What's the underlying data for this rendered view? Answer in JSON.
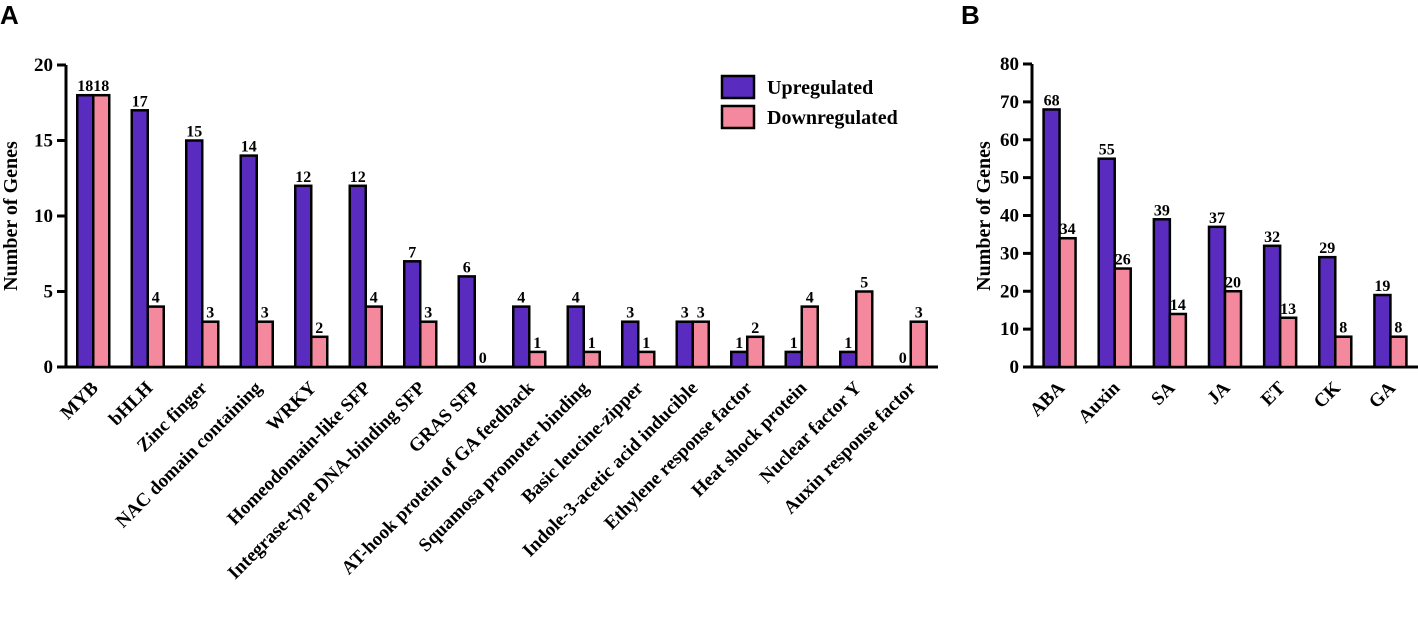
{
  "colors": {
    "upregulated": "#5a2bbf",
    "downregulated": "#f4889c",
    "edge": "#000000"
  },
  "chart_data": [
    {
      "panel": "A",
      "type": "bar",
      "ylabel": "Number of Genes",
      "ylim": [
        0,
        20
      ],
      "yticks": [
        0,
        5,
        10,
        15,
        20
      ],
      "legend": "top-right",
      "categories": [
        "MYB",
        "bHLH",
        "Zinc finger",
        "NAC domain containing",
        "WRKY",
        "Homeodomain-like SFP",
        "Integrase-type DNA-binding SFP",
        "GRAS SFP",
        "AT-hook protein of GA feedback",
        "Squamosa promoter binding",
        "Basic leucine-zipper",
        "Indole-3-acetic acid inducible",
        "Ethylene response factor",
        "Heat shock protein",
        "Nuclear factor Y",
        "Auxin response factor"
      ],
      "series": [
        {
          "name": "Upregulated",
          "values": [
            18,
            17,
            15,
            14,
            12,
            12,
            7,
            6,
            4,
            4,
            3,
            3,
            1,
            1,
            1,
            0
          ]
        },
        {
          "name": "Downregulated",
          "values": [
            18,
            4,
            3,
            3,
            2,
            4,
            3,
            0,
            1,
            1,
            1,
            3,
            2,
            4,
            5,
            3
          ]
        }
      ]
    },
    {
      "panel": "B",
      "type": "bar",
      "ylabel": "Number of Genes",
      "ylim": [
        0,
        80
      ],
      "yticks": [
        0,
        10,
        20,
        30,
        40,
        50,
        60,
        70,
        80
      ],
      "categories": [
        "ABA",
        "Auxin",
        "SA",
        "JA",
        "ET",
        "CK",
        "GA"
      ],
      "series": [
        {
          "name": "Upregulated",
          "values": [
            68,
            55,
            39,
            37,
            32,
            29,
            19
          ]
        },
        {
          "name": "Downregulated",
          "values": [
            34,
            26,
            14,
            20,
            13,
            8,
            8
          ]
        }
      ]
    }
  ]
}
